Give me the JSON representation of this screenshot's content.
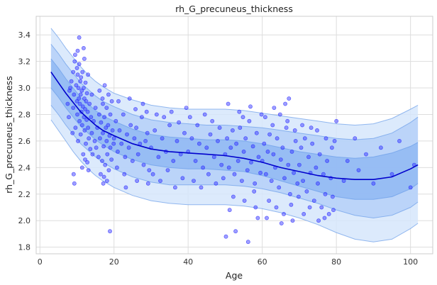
{
  "chart_data": {
    "type": "scatter",
    "title": "rh_G_precuneus_thickness",
    "xlabel": "Age",
    "ylabel": "rh_G_precuneus_thickness",
    "xlim": [
      -1,
      106
    ],
    "ylim": [
      1.75,
      3.54
    ],
    "x_ticks": [
      0,
      20,
      40,
      60,
      80,
      100
    ],
    "x_tick_labels": [
      "0",
      "20",
      "40",
      "60",
      "80",
      "100"
    ],
    "y_ticks": [
      1.8,
      2.0,
      2.2,
      2.4,
      2.6,
      2.8,
      3.0,
      3.2,
      3.4
    ],
    "y_tick_labels": [
      "1.8",
      "2.0",
      "2.2",
      "2.4",
      "2.6",
      "2.8",
      "3.0",
      "3.2",
      "3.4"
    ],
    "grid": true,
    "legend": "none",
    "colors": {
      "points": "#2b2bff",
      "median_line": "#0000cc",
      "band_outer": "#d6e6fb",
      "band_middle": "#b5d0f8",
      "band_inner": "#8fb6f3",
      "band_edge": "#6a9ce8"
    },
    "curve": {
      "x": [
        3,
        5,
        7,
        9,
        11,
        13,
        15,
        17,
        20,
        25,
        30,
        35,
        40,
        45,
        50,
        55,
        60,
        65,
        70,
        75,
        80,
        85,
        90,
        95,
        100,
        102
      ],
      "median": [
        3.12,
        3.04,
        2.96,
        2.89,
        2.82,
        2.77,
        2.72,
        2.68,
        2.64,
        2.58,
        2.54,
        2.52,
        2.51,
        2.5,
        2.49,
        2.47,
        2.44,
        2.4,
        2.37,
        2.34,
        2.32,
        2.31,
        2.31,
        2.33,
        2.39,
        2.42
      ],
      "q05": [
        2.76,
        2.68,
        2.6,
        2.52,
        2.45,
        2.39,
        2.34,
        2.3,
        2.25,
        2.19,
        2.15,
        2.13,
        2.12,
        2.12,
        2.12,
        2.11,
        2.09,
        2.06,
        2.02,
        1.97,
        1.91,
        1.86,
        1.84,
        1.86,
        1.94,
        1.98
      ],
      "q25": [
        2.87,
        2.8,
        2.72,
        2.65,
        2.58,
        2.53,
        2.48,
        2.44,
        2.39,
        2.33,
        2.29,
        2.27,
        2.27,
        2.27,
        2.27,
        2.26,
        2.24,
        2.21,
        2.17,
        2.13,
        2.08,
        2.04,
        2.02,
        2.04,
        2.1,
        2.14
      ],
      "q35": [
        3.0,
        2.93,
        2.85,
        2.78,
        2.71,
        2.66,
        2.61,
        2.57,
        2.52,
        2.46,
        2.42,
        2.4,
        2.39,
        2.39,
        2.38,
        2.37,
        2.34,
        2.3,
        2.26,
        2.22,
        2.18,
        2.16,
        2.16,
        2.18,
        2.24,
        2.28
      ],
      "q65": [
        3.22,
        3.15,
        3.07,
        3.0,
        2.93,
        2.88,
        2.83,
        2.79,
        2.75,
        2.69,
        2.65,
        2.63,
        2.62,
        2.61,
        2.61,
        2.6,
        2.58,
        2.55,
        2.52,
        2.5,
        2.48,
        2.47,
        2.48,
        2.51,
        2.56,
        2.59
      ],
      "q75": [
        3.33,
        3.26,
        3.18,
        3.11,
        3.04,
        2.99,
        2.94,
        2.9,
        2.86,
        2.8,
        2.76,
        2.74,
        2.73,
        2.72,
        2.72,
        2.71,
        2.7,
        2.68,
        2.66,
        2.64,
        2.62,
        2.61,
        2.62,
        2.66,
        2.74,
        2.78
      ],
      "q95": [
        3.45,
        3.38,
        3.3,
        3.23,
        3.16,
        3.1,
        3.05,
        3.01,
        2.96,
        2.91,
        2.87,
        2.85,
        2.84,
        2.84,
        2.84,
        2.83,
        2.81,
        2.79,
        2.77,
        2.75,
        2.73,
        2.72,
        2.73,
        2.77,
        2.84,
        2.87
      ]
    },
    "points": [
      [
        8,
        2.98
      ],
      [
        8.5,
        3.05
      ],
      [
        9,
        3.12
      ],
      [
        9,
        2.85
      ],
      [
        9.2,
        2.95
      ],
      [
        9.4,
        3.2
      ],
      [
        9.5,
        3.25
      ],
      [
        9.6,
        2.7
      ],
      [
        9.8,
        3.02
      ],
      [
        10,
        2.9
      ],
      [
        10,
        3.15
      ],
      [
        10.1,
        2.8
      ],
      [
        10.2,
        3.1
      ],
      [
        10.3,
        2.6
      ],
      [
        10.4,
        3.0
      ],
      [
        10.5,
        2.92
      ],
      [
        10.6,
        3.18
      ],
      [
        10.7,
        2.75
      ],
      [
        10.8,
        2.88
      ],
      [
        10.9,
        3.05
      ],
      [
        11,
        2.95
      ],
      [
        11,
        2.65
      ],
      [
        11.1,
        3.08
      ],
      [
        11.2,
        2.82
      ],
      [
        11.3,
        2.98
      ],
      [
        11.4,
        2.72
      ],
      [
        11.5,
        3.12
      ],
      [
        11.6,
        2.86
      ],
      [
        11.7,
        2.5
      ],
      [
        11.8,
        3.0
      ],
      [
        11.9,
        2.78
      ],
      [
        12,
        2.92
      ],
      [
        12,
        3.22
      ],
      [
        12.1,
        2.68
      ],
      [
        12.2,
        2.84
      ],
      [
        12.3,
        3.04
      ],
      [
        12.4,
        2.58
      ],
      [
        12.5,
        2.9
      ],
      [
        12.6,
        2.76
      ],
      [
        12.7,
        2.96
      ],
      [
        12.8,
        2.44
      ],
      [
        12.9,
        2.82
      ],
      [
        13,
        2.7
      ],
      [
        13,
        3.1
      ],
      [
        13.2,
        2.62
      ],
      [
        13.4,
        2.88
      ],
      [
        13.6,
        2.54
      ],
      [
        13.8,
        2.78
      ],
      [
        14,
        2.66
      ],
      [
        14,
        2.95
      ],
      [
        7.5,
        2.88
      ],
      [
        7.8,
        2.78
      ],
      [
        8.2,
        3.0
      ],
      [
        8.8,
        2.66
      ],
      [
        9.1,
        2.35
      ],
      [
        9.3,
        2.28
      ],
      [
        10.6,
        3.38
      ],
      [
        11.4,
        2.4
      ],
      [
        12.2,
        2.46
      ],
      [
        13.1,
        2.38
      ],
      [
        10.2,
        3.28
      ],
      [
        11.8,
        3.3
      ],
      [
        14.2,
        2.5
      ],
      [
        14.5,
        2.75
      ],
      [
        14.8,
        2.6
      ],
      [
        15,
        2.85
      ],
      [
        15.2,
        2.55
      ],
      [
        15.5,
        2.7
      ],
      [
        15.8,
        2.48
      ],
      [
        16,
        2.8
      ],
      [
        16.2,
        2.62
      ],
      [
        16.5,
        2.74
      ],
      [
        16.8,
        2.45
      ],
      [
        17,
        2.88
      ],
      [
        17,
        2.66
      ],
      [
        17.2,
        2.56
      ],
      [
        17.4,
        2.78
      ],
      [
        17.6,
        2.42
      ],
      [
        17.8,
        2.7
      ],
      [
        18,
        2.6
      ],
      [
        18,
        2.85
      ],
      [
        18.2,
        2.5
      ],
      [
        18.4,
        2.72
      ],
      [
        18.6,
        2.38
      ],
      [
        18.8,
        2.64
      ],
      [
        19,
        2.55
      ],
      [
        19,
        2.8
      ],
      [
        19.3,
        2.46
      ],
      [
        19.6,
        2.68
      ],
      [
        19.9,
        2.58
      ],
      [
        16.1,
        2.98
      ],
      [
        16.4,
        2.35
      ],
      [
        17.1,
        2.28
      ],
      [
        17.5,
        3.02
      ],
      [
        18.1,
        2.3
      ],
      [
        18.9,
        1.92
      ],
      [
        19.4,
        2.9
      ],
      [
        16.9,
        2.92
      ],
      [
        17.3,
        2.33
      ],
      [
        18.5,
        2.95
      ],
      [
        20,
        2.62
      ],
      [
        20.5,
        2.75
      ],
      [
        21,
        2.52
      ],
      [
        21.5,
        2.68
      ],
      [
        22,
        2.58
      ],
      [
        22.5,
        2.8
      ],
      [
        23,
        2.48
      ],
      [
        23.5,
        2.65
      ],
      [
        24,
        2.55
      ],
      [
        24.5,
        2.72
      ],
      [
        25,
        2.45
      ],
      [
        25.5,
        2.62
      ],
      [
        26,
        2.7
      ],
      [
        26.5,
        2.5
      ],
      [
        27,
        2.58
      ],
      [
        27.5,
        2.78
      ],
      [
        28,
        2.42
      ],
      [
        28.5,
        2.6
      ],
      [
        29,
        2.66
      ],
      [
        29.5,
        2.38
      ],
      [
        21.2,
        2.9
      ],
      [
        22.8,
        2.35
      ],
      [
        24.2,
        2.92
      ],
      [
        26.2,
        2.3
      ],
      [
        27.8,
        2.88
      ],
      [
        29.2,
        2.28
      ],
      [
        23.2,
        2.25
      ],
      [
        25.8,
        2.84
      ],
      [
        28.8,
        2.82
      ],
      [
        20.8,
        2.4
      ],
      [
        30,
        2.55
      ],
      [
        31,
        2.68
      ],
      [
        32,
        2.48
      ],
      [
        33,
        2.62
      ],
      [
        34,
        2.52
      ],
      [
        35,
        2.72
      ],
      [
        36,
        2.45
      ],
      [
        37,
        2.6
      ],
      [
        38,
        2.5
      ],
      [
        39,
        2.66
      ],
      [
        30.5,
        2.35
      ],
      [
        31.5,
        2.8
      ],
      [
        32.5,
        2.3
      ],
      [
        33.5,
        2.78
      ],
      [
        34.5,
        2.38
      ],
      [
        35.5,
        2.82
      ],
      [
        36.5,
        2.25
      ],
      [
        37.5,
        2.74
      ],
      [
        38.5,
        2.32
      ],
      [
        39.5,
        2.85
      ],
      [
        40,
        2.52
      ],
      [
        41,
        2.62
      ],
      [
        42,
        2.45
      ],
      [
        43,
        2.58
      ],
      [
        44,
        2.4
      ],
      [
        45,
        2.55
      ],
      [
        46,
        2.65
      ],
      [
        47,
        2.48
      ],
      [
        48,
        2.6
      ],
      [
        49,
        2.42
      ],
      [
        40.5,
        2.78
      ],
      [
        41.5,
        2.3
      ],
      [
        42.5,
        2.72
      ],
      [
        43.5,
        2.25
      ],
      [
        44.5,
        2.8
      ],
      [
        45.5,
        2.35
      ],
      [
        46.5,
        2.75
      ],
      [
        47.5,
        2.28
      ],
      [
        48.5,
        2.7
      ],
      [
        49.5,
        2.32
      ],
      [
        50,
        2.5
      ],
      [
        50.5,
        2.62
      ],
      [
        51,
        2.4
      ],
      [
        51.5,
        2.55
      ],
      [
        52,
        2.68
      ],
      [
        52.5,
        2.35
      ],
      [
        53,
        2.58
      ],
      [
        53.5,
        2.45
      ],
      [
        54,
        2.7
      ],
      [
        54.5,
        2.3
      ],
      [
        55,
        2.52
      ],
      [
        55.5,
        2.62
      ],
      [
        56,
        2.38
      ],
      [
        56.5,
        2.75
      ],
      [
        57,
        2.44
      ],
      [
        57.5,
        2.56
      ],
      [
        58,
        2.28
      ],
      [
        58.5,
        2.66
      ],
      [
        59,
        2.48
      ],
      [
        59.5,
        2.36
      ],
      [
        50.8,
        2.88
      ],
      [
        52.2,
        2.18
      ],
      [
        53.8,
        2.82
      ],
      [
        55.2,
        2.15
      ],
      [
        56.8,
        2.86
      ],
      [
        58.2,
        2.1
      ],
      [
        59.8,
        2.8
      ],
      [
        51.2,
        2.08
      ],
      [
        54.8,
        2.78
      ],
      [
        57.8,
        2.22
      ],
      [
        50.2,
        1.88
      ],
      [
        52.8,
        1.92
      ],
      [
        56.2,
        1.84
      ],
      [
        58.8,
        2.02
      ],
      [
        60,
        2.45
      ],
      [
        60.5,
        2.58
      ],
      [
        61,
        2.35
      ],
      [
        61.5,
        2.52
      ],
      [
        62,
        2.65
      ],
      [
        62.5,
        2.3
      ],
      [
        63,
        2.5
      ],
      [
        63.5,
        2.4
      ],
      [
        64,
        2.62
      ],
      [
        64.5,
        2.25
      ],
      [
        65,
        2.46
      ],
      [
        65.5,
        2.55
      ],
      [
        66,
        2.32
      ],
      [
        66.5,
        2.7
      ],
      [
        67,
        2.42
      ],
      [
        67.5,
        2.2
      ],
      [
        68,
        2.52
      ],
      [
        68.5,
        2.36
      ],
      [
        69,
        2.6
      ],
      [
        69.5,
        2.28
      ],
      [
        60.8,
        2.78
      ],
      [
        61.8,
        2.15
      ],
      [
        62.8,
        2.72
      ],
      [
        63.8,
        2.1
      ],
      [
        64.8,
        2.8
      ],
      [
        65.8,
        2.05
      ],
      [
        66.8,
        2.75
      ],
      [
        67.2,
        2.92
      ],
      [
        67.8,
        2.12
      ],
      [
        68.8,
        2.68
      ],
      [
        69.8,
        2.18
      ],
      [
        61.2,
        2.02
      ],
      [
        63.2,
        2.85
      ],
      [
        65.2,
        1.98
      ],
      [
        66.2,
        2.88
      ],
      [
        68.2,
        2.0
      ],
      [
        70,
        2.42
      ],
      [
        70.5,
        2.55
      ],
      [
        71,
        2.3
      ],
      [
        71.5,
        2.62
      ],
      [
        72,
        2.22
      ],
      [
        72.5,
        2.48
      ],
      [
        73,
        2.36
      ],
      [
        73.5,
        2.58
      ],
      [
        74,
        2.15
      ],
      [
        74.5,
        2.4
      ],
      [
        75,
        2.28
      ],
      [
        75.5,
        2.5
      ],
      [
        76,
        2.1
      ],
      [
        76.5,
        2.35
      ],
      [
        77,
        2.2
      ],
      [
        77.5,
        2.45
      ],
      [
        78,
        2.05
      ],
      [
        78.5,
        2.32
      ],
      [
        79,
        2.18
      ],
      [
        79.5,
        2.6
      ],
      [
        70.8,
        2.72
      ],
      [
        72.8,
        2.1
      ],
      [
        74.8,
        2.68
      ],
      [
        76.8,
        2.02
      ],
      [
        78.8,
        2.55
      ],
      [
        71.2,
        2.05
      ],
      [
        73.2,
        2.7
      ],
      [
        75.2,
        2.0
      ],
      [
        77.2,
        2.62
      ],
      [
        79.2,
        2.08
      ],
      [
        80,
        2.75
      ],
      [
        82,
        2.3
      ],
      [
        83,
        2.45
      ],
      [
        85,
        2.62
      ],
      [
        86,
        2.38
      ],
      [
        88,
        2.5
      ],
      [
        90,
        2.28
      ],
      [
        92,
        2.55
      ],
      [
        95,
        2.35
      ],
      [
        97,
        2.6
      ],
      [
        100,
        2.25
      ],
      [
        101,
        2.42
      ]
    ]
  }
}
